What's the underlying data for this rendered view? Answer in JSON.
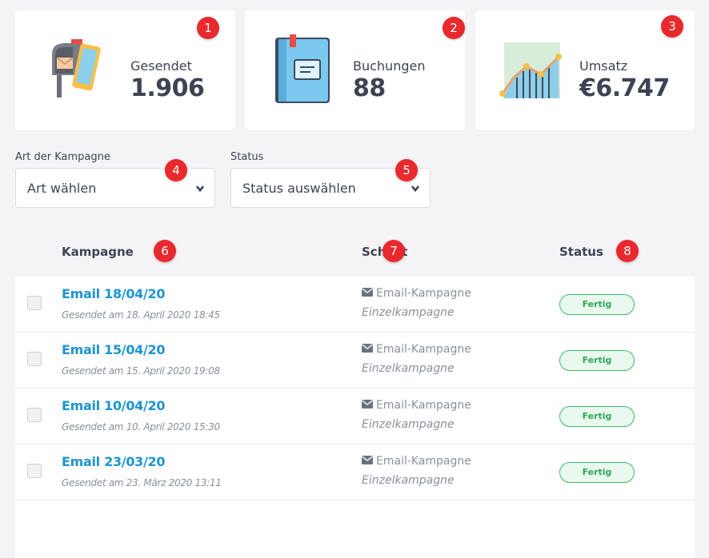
{
  "stats": [
    {
      "label": "Gesendet",
      "value": "1.906",
      "icon": "mailbox-phone-icon",
      "badge": "1"
    },
    {
      "label": "Buchungen",
      "value": "88",
      "icon": "book-icon",
      "badge": "2"
    },
    {
      "label": "Umsatz",
      "value": "€6.747",
      "icon": "growth-chart-icon",
      "badge": "3"
    }
  ],
  "filters": {
    "type": {
      "label": "Art der Kampagne",
      "value": "Art wählen",
      "badge": "4"
    },
    "status": {
      "label": "Status",
      "value": "Status auswählen",
      "badge": "5"
    }
  },
  "table": {
    "headers": [
      {
        "label": "Kampagne",
        "badge": "6"
      },
      {
        "label": "Schritt",
        "badge": "7"
      },
      {
        "label": "Status",
        "badge": "8"
      }
    ],
    "rows": [
      {
        "title": "Email 18/04/20",
        "sent": "Gesendet am 18. April 2020 18:45",
        "type": "Email-Kampagne",
        "subtype": "Einzelkampagne",
        "status": "Fertig"
      },
      {
        "title": "Email 15/04/20",
        "sent": "Gesendet am 15. April 2020 19:08",
        "type": "Email-Kampagne",
        "subtype": "Einzelkampagne",
        "status": "Fertig"
      },
      {
        "title": "Email 10/04/20",
        "sent": "Gesendet am 10. April 2020 15:30",
        "type": "Email-Kampagne",
        "subtype": "Einzelkampagne",
        "status": "Fertig"
      },
      {
        "title": "Email 23/03/20",
        "sent": "Gesendet am 23. März 2020 13:11",
        "type": "Email-Kampagne",
        "subtype": "Einzelkampagne",
        "status": "Fertig"
      }
    ]
  },
  "colors": {
    "accent": "#1b95cf",
    "status_green": "#3dbb6a",
    "badge_red": "#e8292d"
  }
}
